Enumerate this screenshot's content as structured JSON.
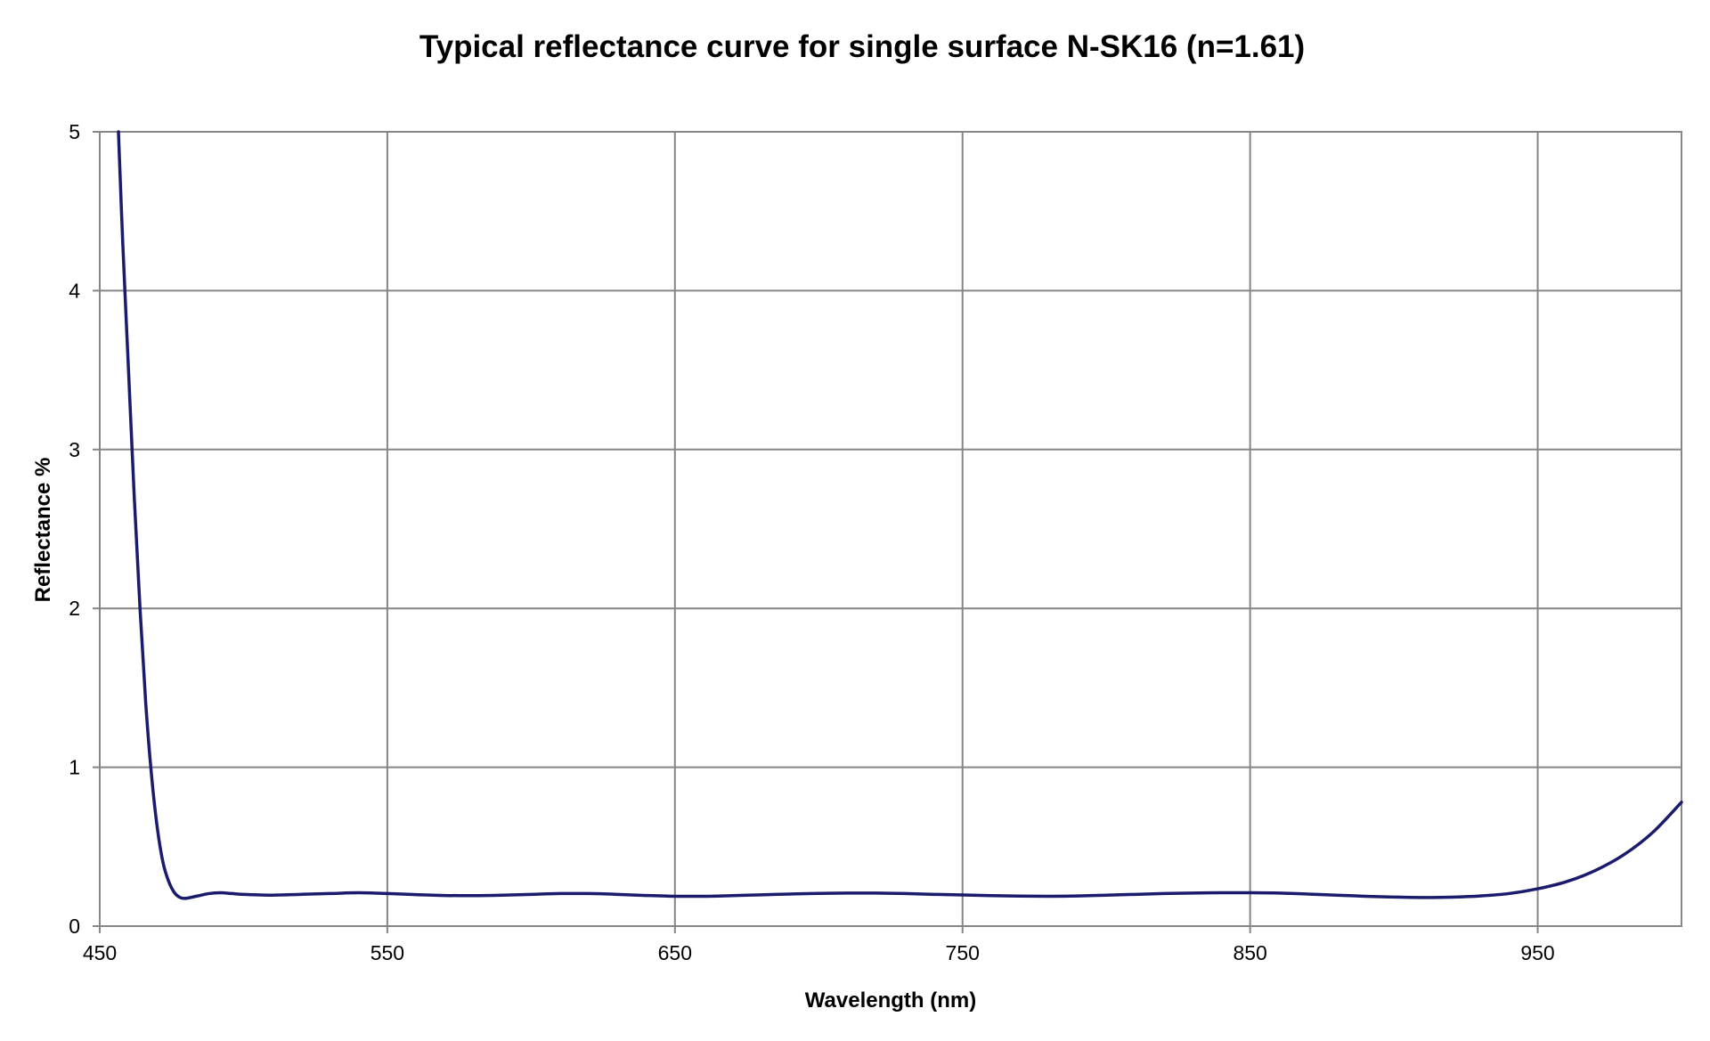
{
  "chart_data": {
    "type": "line",
    "title": "Typical reflectance curve for single surface N-SK16 (n=1.61)",
    "xlabel": "Wavelength (nm)",
    "ylabel": "Reflectance %",
    "xlim": [
      450,
      1000
    ],
    "ylim": [
      0,
      5
    ],
    "x_ticks": [
      450,
      550,
      650,
      750,
      850,
      950
    ],
    "x_tick_labels": [
      "450",
      "550",
      "650",
      "750",
      "850",
      "950"
    ],
    "y_ticks": [
      0,
      1,
      2,
      3,
      4,
      5
    ],
    "y_tick_labels": [
      "0",
      "1",
      "2",
      "3",
      "4",
      "5"
    ],
    "grid": true,
    "legend": "none",
    "line_color": "#1b1b6e",
    "series": [
      {
        "x": [
          456.5,
          458,
          460,
          462,
          464,
          466,
          468,
          470,
          472,
          474,
          476,
          478,
          480,
          484,
          488,
          492,
          496,
          500,
          510,
          520,
          530,
          540,
          550,
          560,
          570,
          580,
          590,
          600,
          610,
          620,
          630,
          640,
          650,
          660,
          670,
          680,
          690,
          700,
          710,
          720,
          730,
          740,
          750,
          760,
          770,
          780,
          790,
          800,
          810,
          820,
          830,
          840,
          850,
          860,
          870,
          880,
          890,
          900,
          910,
          920,
          930,
          940,
          950,
          960,
          970,
          980,
          990,
          1000
        ],
        "y": [
          5.0,
          4.3,
          3.5,
          2.7,
          2.0,
          1.4,
          0.95,
          0.62,
          0.4,
          0.28,
          0.21,
          0.18,
          0.175,
          0.19,
          0.205,
          0.21,
          0.205,
          0.2,
          0.195,
          0.2,
          0.205,
          0.21,
          0.205,
          0.198,
          0.193,
          0.192,
          0.195,
          0.2,
          0.205,
          0.205,
          0.2,
          0.193,
          0.188,
          0.188,
          0.192,
          0.197,
          0.202,
          0.206,
          0.208,
          0.208,
          0.205,
          0.2,
          0.196,
          0.192,
          0.189,
          0.188,
          0.19,
          0.195,
          0.2,
          0.205,
          0.208,
          0.21,
          0.21,
          0.208,
          0.202,
          0.195,
          0.188,
          0.183,
          0.18,
          0.182,
          0.19,
          0.205,
          0.235,
          0.28,
          0.35,
          0.45,
          0.59,
          0.78
        ]
      }
    ]
  }
}
